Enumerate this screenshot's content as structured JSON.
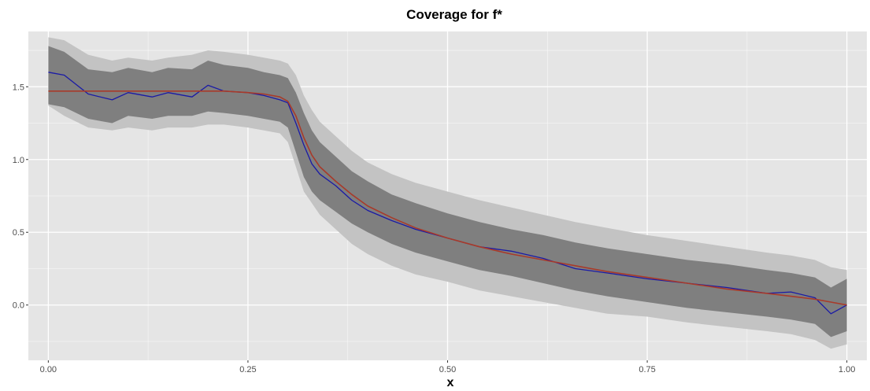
{
  "chart_data": {
    "type": "line",
    "title": "Coverage for f*",
    "xlabel": "x",
    "ylabel": "",
    "xlim": [
      -0.025,
      1.025
    ],
    "ylim": [
      -0.38,
      1.88
    ],
    "xticks": [
      0.0,
      0.25,
      0.5,
      0.75,
      1.0
    ],
    "xtick_labels": [
      "0.00",
      "0.25",
      "0.50",
      "0.75",
      "1.00"
    ],
    "yticks": [
      0.0,
      0.5,
      1.0,
      1.5
    ],
    "ytick_labels": [
      "0.0",
      "0.5",
      "1.0",
      "1.5"
    ],
    "grid": true,
    "legend": "none",
    "colors": {
      "panel": "#e5e5e5",
      "grid_major": "#ffffff",
      "outer_band": "#c3c3c3",
      "inner_band": "#7f7f7f",
      "estimate": "#1a1aa6",
      "truth": "#a83a2a"
    },
    "x": [
      0.0,
      0.02,
      0.05,
      0.08,
      0.1,
      0.13,
      0.15,
      0.18,
      0.2,
      0.22,
      0.25,
      0.27,
      0.29,
      0.3,
      0.31,
      0.32,
      0.33,
      0.34,
      0.36,
      0.38,
      0.4,
      0.43,
      0.46,
      0.5,
      0.54,
      0.58,
      0.62,
      0.66,
      0.7,
      0.75,
      0.8,
      0.85,
      0.9,
      0.93,
      0.96,
      0.98,
      1.0
    ],
    "series": [
      {
        "role": "truth",
        "values": [
          1.47,
          1.47,
          1.47,
          1.47,
          1.47,
          1.47,
          1.47,
          1.47,
          1.47,
          1.47,
          1.46,
          1.45,
          1.43,
          1.4,
          1.3,
          1.15,
          1.03,
          0.95,
          0.85,
          0.76,
          0.68,
          0.6,
          0.53,
          0.46,
          0.4,
          0.35,
          0.31,
          0.27,
          0.23,
          0.19,
          0.15,
          0.11,
          0.08,
          0.06,
          0.04,
          0.02,
          0.0
        ]
      },
      {
        "role": "estimate",
        "values": [
          1.6,
          1.58,
          1.45,
          1.41,
          1.46,
          1.43,
          1.46,
          1.43,
          1.51,
          1.47,
          1.46,
          1.44,
          1.41,
          1.39,
          1.25,
          1.1,
          0.97,
          0.9,
          0.82,
          0.72,
          0.65,
          0.58,
          0.52,
          0.46,
          0.4,
          0.37,
          0.32,
          0.25,
          0.22,
          0.18,
          0.15,
          0.12,
          0.08,
          0.09,
          0.05,
          -0.06,
          0.0
        ]
      }
    ],
    "bands": [
      {
        "role": "outer",
        "lower": [
          1.37,
          1.3,
          1.22,
          1.2,
          1.22,
          1.2,
          1.22,
          1.22,
          1.24,
          1.24,
          1.22,
          1.2,
          1.18,
          1.12,
          0.95,
          0.78,
          0.7,
          0.62,
          0.52,
          0.42,
          0.35,
          0.27,
          0.21,
          0.16,
          0.1,
          0.06,
          0.02,
          -0.02,
          -0.06,
          -0.08,
          -0.12,
          -0.15,
          -0.18,
          -0.2,
          -0.24,
          -0.3,
          -0.27
        ],
        "upper": [
          1.84,
          1.82,
          1.72,
          1.68,
          1.7,
          1.68,
          1.7,
          1.72,
          1.75,
          1.74,
          1.72,
          1.7,
          1.68,
          1.66,
          1.58,
          1.44,
          1.34,
          1.26,
          1.16,
          1.06,
          0.98,
          0.9,
          0.84,
          0.78,
          0.72,
          0.67,
          0.62,
          0.57,
          0.53,
          0.48,
          0.44,
          0.4,
          0.36,
          0.34,
          0.31,
          0.26,
          0.24
        ]
      },
      {
        "role": "inner",
        "lower": [
          1.38,
          1.36,
          1.28,
          1.25,
          1.3,
          1.28,
          1.3,
          1.3,
          1.33,
          1.32,
          1.3,
          1.28,
          1.26,
          1.22,
          1.05,
          0.88,
          0.78,
          0.72,
          0.64,
          0.56,
          0.5,
          0.42,
          0.36,
          0.3,
          0.24,
          0.2,
          0.15,
          0.1,
          0.06,
          0.02,
          -0.02,
          -0.05,
          -0.08,
          -0.1,
          -0.13,
          -0.22,
          -0.18
        ],
        "upper": [
          1.78,
          1.74,
          1.62,
          1.6,
          1.63,
          1.6,
          1.63,
          1.62,
          1.68,
          1.65,
          1.63,
          1.6,
          1.58,
          1.56,
          1.46,
          1.32,
          1.2,
          1.12,
          1.02,
          0.92,
          0.85,
          0.76,
          0.7,
          0.63,
          0.57,
          0.52,
          0.48,
          0.43,
          0.39,
          0.35,
          0.31,
          0.28,
          0.24,
          0.22,
          0.19,
          0.12,
          0.18
        ]
      }
    ]
  }
}
